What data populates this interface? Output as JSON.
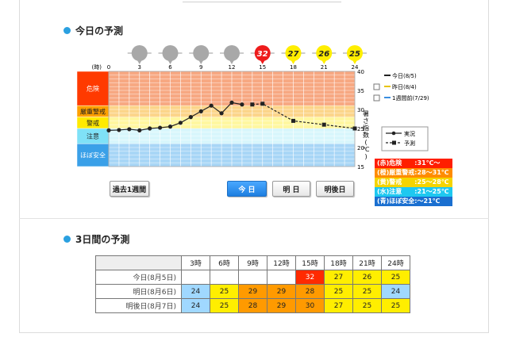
{
  "sections": {
    "today_title": "今日の予測",
    "three_day_title": "3日間の予測"
  },
  "chart": {
    "hour_unit": "(時)",
    "hours": [
      "0",
      "3",
      "6",
      "9",
      "12",
      "15",
      "18",
      "21",
      "24"
    ],
    "forecast_badges": [
      {
        "hour": 3,
        "value": "",
        "color": "#a8a8a8"
      },
      {
        "hour": 6,
        "value": "",
        "color": "#a8a8a8"
      },
      {
        "hour": 9,
        "value": "",
        "color": "#a8a8a8"
      },
      {
        "hour": 12,
        "value": "",
        "color": "#a8a8a8"
      },
      {
        "hour": 15,
        "value": "32",
        "color": "#ee1c1c"
      },
      {
        "hour": 18,
        "value": "27",
        "color": "#ffee00"
      },
      {
        "hour": 21,
        "value": "26",
        "color": "#ffee00"
      },
      {
        "hour": 24,
        "value": "25",
        "color": "#ffee00"
      }
    ],
    "y_ticks": [
      "40",
      "35",
      "30",
      "25",
      "20",
      "15"
    ],
    "y_axis_label": [
      "暑",
      "さ",
      "指",
      "数",
      "(",
      "℃",
      ")"
    ],
    "bands": [
      {
        "label": "危険",
        "min": 31,
        "max": 40,
        "label_bg": "#ff3a00",
        "fill": "#f7a882"
      },
      {
        "label": "厳重警戒",
        "min": 28,
        "max": 31,
        "label_bg": "#ffa000",
        "fill": "#fcd58a"
      },
      {
        "label": "警戒",
        "min": 25,
        "max": 28,
        "label_bg": "#ffea00",
        "fill": "#fff7a0"
      },
      {
        "label": "注意",
        "min": 21,
        "max": 25,
        "label_bg": "#7fe1f7",
        "fill": "#d8f6fc"
      },
      {
        "label": "ほぼ安全",
        "min": 15,
        "max": 21,
        "label_bg": "#3aa0e8",
        "fill": "#a8d6f6"
      }
    ]
  },
  "chart_data": {
    "type": "line",
    "x_label": "(時)",
    "y_label": "暑さ指数(℃)",
    "ylim": [
      15,
      40
    ],
    "xlim": [
      0,
      24
    ],
    "series": [
      {
        "name": "実況",
        "style": "solid",
        "x": [
          0,
          1,
          2,
          3,
          4,
          5,
          6,
          7,
          8,
          9,
          10,
          11,
          12,
          13
        ],
        "y": [
          24.5,
          24.6,
          24.8,
          24.5,
          25.0,
          25.2,
          25.5,
          26.5,
          28.0,
          29.5,
          31.0,
          29.0,
          31.8,
          31.3
        ]
      },
      {
        "name": "予測",
        "style": "dashed",
        "x": [
          14,
          15,
          18,
          21,
          24
        ],
        "y": [
          31.3,
          31.5,
          27.0,
          26.0,
          25.0
        ]
      }
    ]
  },
  "legend": {
    "lines": [
      {
        "label": "今日(8/5)",
        "color": "#222222",
        "has_checkbox": false
      },
      {
        "label": "昨日(8/4)",
        "color": "#e7c400",
        "has_checkbox": true
      },
      {
        "label": "1週間前(7/29)",
        "color": "#3a8ee0",
        "has_checkbox": true
      }
    ],
    "types": [
      {
        "label": "実況"
      },
      {
        "label": "予測"
      }
    ],
    "key": [
      {
        "text": "(赤)危険　　:31℃～",
        "bg": "#ff1e00"
      },
      {
        "text": "(橙)厳重警戒:28～31℃",
        "bg": "#ff8c00"
      },
      {
        "text": "(黄)警戒　　:25～28℃",
        "bg": "#f5d400"
      },
      {
        "text": "(水)注意　　:21～25℃",
        "bg": "#1ec8f0"
      },
      {
        "text": "(青)ほぼ安全:～21℃",
        "bg": "#1a6fd0"
      }
    ]
  },
  "buttons": {
    "past_week": "過去1週間",
    "today": "今 日",
    "tomorrow": "明 日",
    "day_after": "明後日"
  },
  "table": {
    "headers": [
      "3時",
      "6時",
      "9時",
      "12時",
      "15時",
      "18時",
      "21時",
      "24時"
    ],
    "rows": [
      {
        "label": "今日(8月5日)",
        "cells": [
          {
            "v": "",
            "c": "#ffffff"
          },
          {
            "v": "",
            "c": "#ffffff"
          },
          {
            "v": "",
            "c": "#ffffff"
          },
          {
            "v": "",
            "c": "#ffffff"
          },
          {
            "v": "32",
            "c": "#ff2a00",
            "fg": "#ffffff"
          },
          {
            "v": "27",
            "c": "#ffee00"
          },
          {
            "v": "26",
            "c": "#ffee00"
          },
          {
            "v": "25",
            "c": "#ffee00"
          }
        ]
      },
      {
        "label": "明日(8月6日)",
        "cells": [
          {
            "v": "24",
            "c": "#a0d8ff"
          },
          {
            "v": "25",
            "c": "#ffee00"
          },
          {
            "v": "29",
            "c": "#ff9a00"
          },
          {
            "v": "29",
            "c": "#ff9a00"
          },
          {
            "v": "28",
            "c": "#ff9a00"
          },
          {
            "v": "25",
            "c": "#ffee00"
          },
          {
            "v": "25",
            "c": "#ffee00"
          },
          {
            "v": "24",
            "c": "#a0d8ff"
          }
        ]
      },
      {
        "label": "明後日(8月7日)",
        "cells": [
          {
            "v": "24",
            "c": "#a0d8ff"
          },
          {
            "v": "25",
            "c": "#ffee00"
          },
          {
            "v": "28",
            "c": "#ff9a00"
          },
          {
            "v": "29",
            "c": "#ff9a00"
          },
          {
            "v": "30",
            "c": "#ff9a00"
          },
          {
            "v": "27",
            "c": "#ffee00"
          },
          {
            "v": "25",
            "c": "#ffee00"
          },
          {
            "v": "25",
            "c": "#ffee00"
          }
        ]
      }
    ]
  }
}
